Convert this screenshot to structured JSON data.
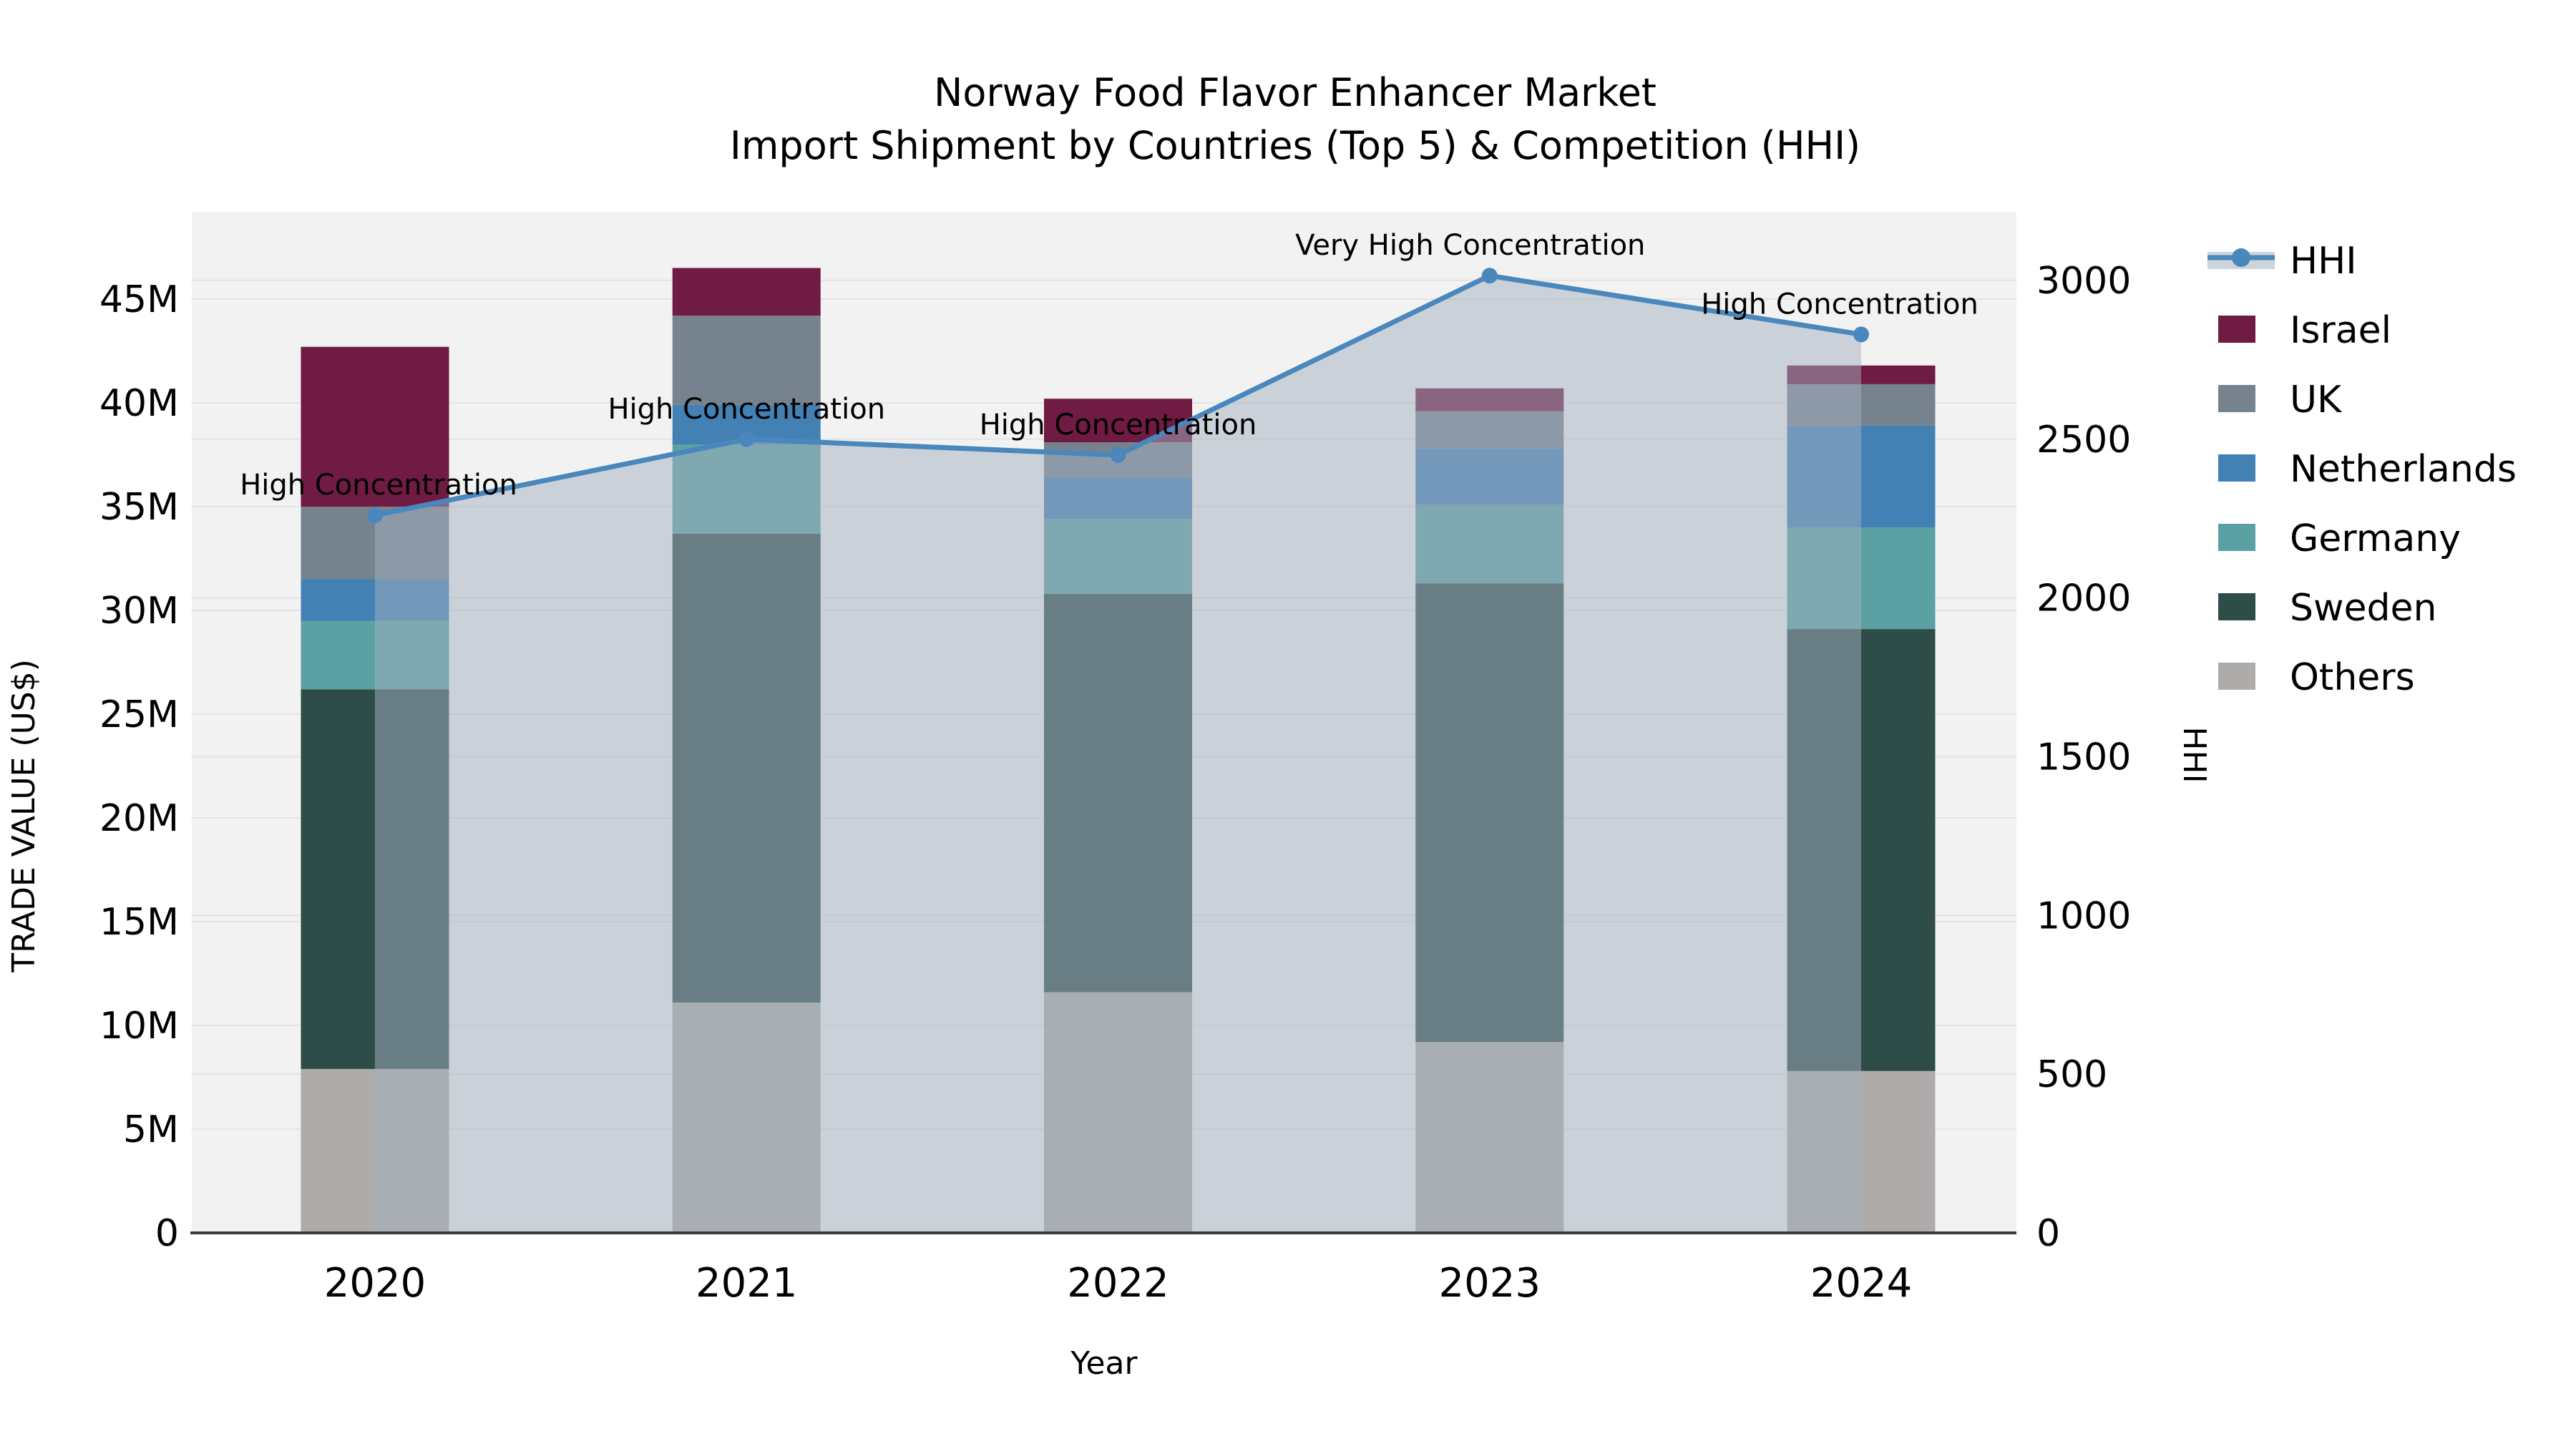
{
  "title": "Norway Food Flavor Enhancer Market",
  "subtitle": "Import Shipment by Countries (Top 5) & Competition (HHI)",
  "x_axis_label": "Year",
  "y_left_label": "TRADE VALUE (US$)",
  "y_right_label": "HHI",
  "colors": {
    "plot_background": "#f2f2f2",
    "gridline": "#e4e4e4",
    "axis_line": "#3a3a3a",
    "hhi_line": "#4a87bd",
    "hhi_area_fill": "rgba(163,175,191,0.5)",
    "legend_band": "#ccd3db"
  },
  "chart_data": {
    "type": "bar",
    "subtype": "stacked-bars-with-line-overlay",
    "categories": [
      "2020",
      "2021",
      "2022",
      "2023",
      "2024"
    ],
    "values_unit": "million US$",
    "series": [
      {
        "name": "Others",
        "color": "#aeacaa",
        "values_musd": [
          7.9,
          11.1,
          11.6,
          9.2,
          7.8
        ]
      },
      {
        "name": "Sweden",
        "color": "#2f4d48",
        "values_musd": [
          18.3,
          22.6,
          19.2,
          22.1,
          21.3
        ]
      },
      {
        "name": "Germany",
        "color": "#5ba1a3",
        "values_musd": [
          3.3,
          4.3,
          3.6,
          3.8,
          4.9
        ]
      },
      {
        "name": "Netherlands",
        "color": "#4381b5",
        "values_musd": [
          2.0,
          1.9,
          2.0,
          2.7,
          4.9
        ]
      },
      {
        "name": "UK",
        "color": "#76828e",
        "values_musd": [
          3.5,
          4.3,
          1.7,
          1.8,
          2.0
        ]
      },
      {
        "name": "Israel",
        "color": "#6f1b43",
        "values_musd": [
          7.7,
          2.3,
          2.1,
          1.1,
          0.9
        ]
      }
    ],
    "bar_totals_musd": [
      42.7,
      46.5,
      40.2,
      40.7,
      41.8
    ],
    "line_series": {
      "name": "HHI",
      "color": "#4a87bd",
      "fill_color": "rgba(163,175,191,0.5)",
      "values": [
        2260,
        2500,
        2450,
        3015,
        2830
      ]
    },
    "annotations": [
      {
        "category": "2020",
        "text": "High Concentration",
        "dx": 5
      },
      {
        "category": "2021",
        "text": "High Concentration",
        "dx": 0
      },
      {
        "category": "2022",
        "text": "High Concentration",
        "dx": 0
      },
      {
        "category": "2023",
        "text": "Very High Concentration",
        "dx": -27
      },
      {
        "category": "2024",
        "text": "High Concentration",
        "dx": -30
      }
    ],
    "y_left": {
      "label": "TRADE VALUE (US$)",
      "tick_values_musd": [
        0,
        5,
        10,
        15,
        20,
        25,
        30,
        35,
        40,
        45
      ],
      "tick_labels": [
        "0",
        "5M",
        "10M",
        "15M",
        "20M",
        "25M",
        "30M",
        "35M",
        "40M",
        "45M"
      ]
    },
    "y_right": {
      "label": "HHI",
      "tick_values": [
        0,
        500,
        1000,
        1500,
        2000,
        2500,
        3000
      ],
      "tick_labels": [
        "0",
        "500",
        "1000",
        "1500",
        "2000",
        "2500",
        "3000"
      ]
    },
    "grid": true,
    "legend_position": "right"
  },
  "legend": {
    "items": [
      {
        "label": "HHI",
        "type": "line",
        "color": "#4a87bd"
      },
      {
        "label": "Israel",
        "type": "patch",
        "color": "#6f1b43"
      },
      {
        "label": "UK",
        "type": "patch",
        "color": "#76828e"
      },
      {
        "label": "Netherlands",
        "type": "patch",
        "color": "#4381b5"
      },
      {
        "label": "Germany",
        "type": "patch",
        "color": "#5ba1a3"
      },
      {
        "label": "Sweden",
        "type": "patch",
        "color": "#2f4d48"
      },
      {
        "label": "Others",
        "type": "patch",
        "color": "#aeacaa"
      }
    ]
  }
}
